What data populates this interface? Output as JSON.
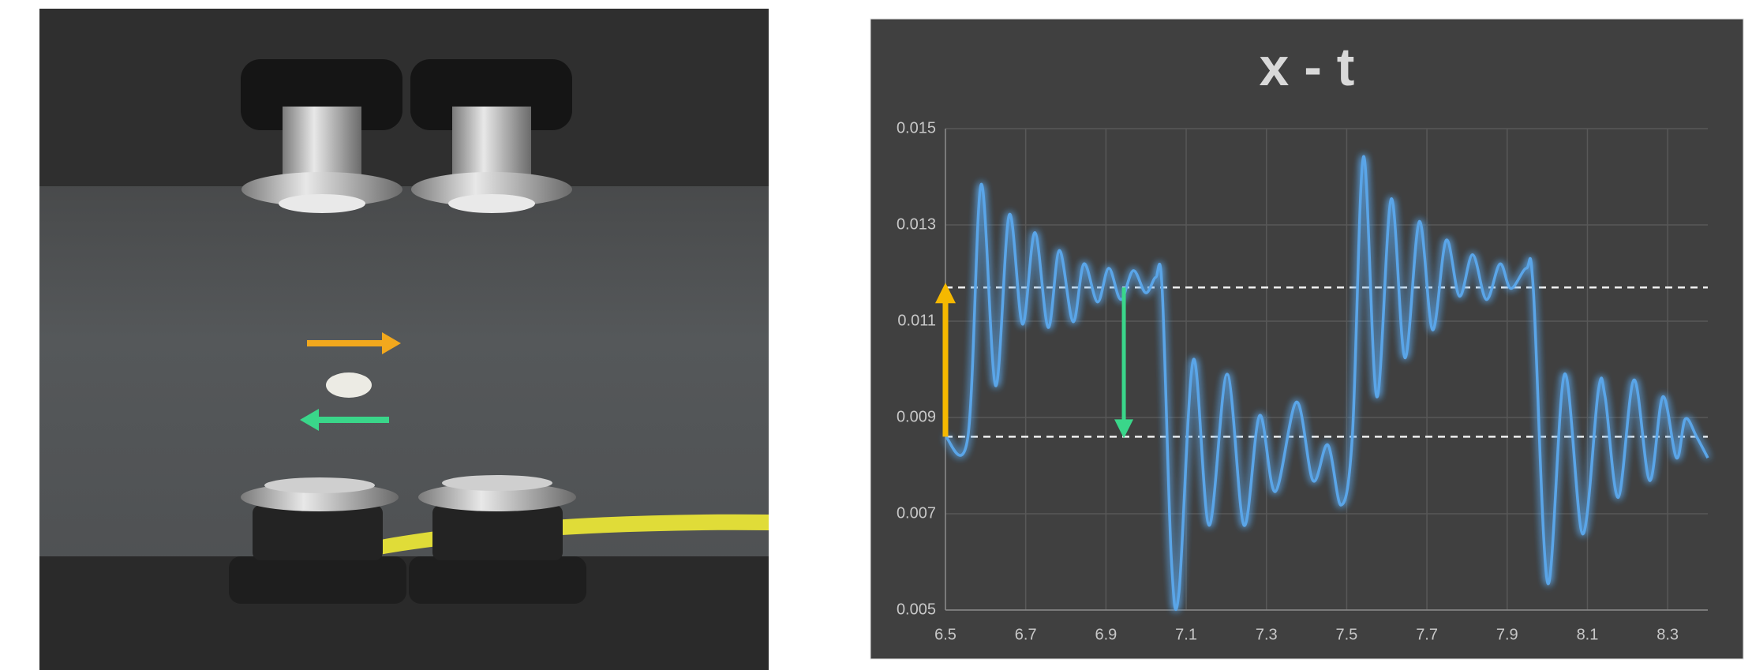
{
  "chart_data": {
    "type": "line",
    "title": "x - t",
    "xlim": [
      6.5,
      8.4
    ],
    "xticks": [
      6.5,
      6.7,
      6.9,
      7.1,
      7.3,
      7.5,
      7.7,
      7.9,
      8.1,
      8.3
    ],
    "ylim": [
      0.005,
      0.015
    ],
    "yticks": [
      0.005,
      0.007,
      0.009,
      0.011,
      0.013,
      0.015
    ],
    "grid": true,
    "reference_lines": [
      0.0117,
      0.0086
    ],
    "series": [
      {
        "color": "#5aa5e8",
        "x": [
          6.5,
          6.556,
          6.589,
          6.625,
          6.659,
          6.692,
          6.723,
          6.756,
          6.784,
          6.818,
          6.845,
          6.879,
          6.907,
          6.937,
          6.968,
          6.999,
          7.024,
          7.04,
          7.063,
          7.082,
          7.118,
          7.157,
          7.202,
          7.244,
          7.283,
          7.322,
          7.375,
          7.416,
          7.453,
          7.486,
          7.514,
          7.542,
          7.575,
          7.611,
          7.645,
          7.681,
          7.714,
          7.748,
          7.781,
          7.814,
          7.848,
          7.882,
          7.909,
          7.948,
          7.965,
          8.001,
          8.043,
          8.088,
          8.127,
          8.144,
          8.177,
          8.216,
          8.255,
          8.288,
          8.322,
          8.344,
          8.372,
          8.4
        ],
        "values": [
          0.0086,
          0.0086,
          0.01384,
          0.00966,
          0.01321,
          0.01094,
          0.01284,
          0.01087,
          0.01247,
          0.01099,
          0.01219,
          0.0114,
          0.0121,
          0.01145,
          0.01205,
          0.01159,
          0.01191,
          0.01168,
          0.00607,
          0.00537,
          0.0102,
          0.00676,
          0.0099,
          0.00676,
          0.00904,
          0.00746,
          0.00932,
          0.00769,
          0.00843,
          0.00718,
          0.0086,
          0.01442,
          0.00943,
          0.01354,
          0.01024,
          0.01307,
          0.01082,
          0.01268,
          0.01152,
          0.01238,
          0.01145,
          0.01219,
          0.01168,
          0.0121,
          0.01168,
          0.00556,
          0.0099,
          0.00658,
          0.00955,
          0.00943,
          0.00734,
          0.00978,
          0.00769,
          0.00943,
          0.00816,
          0.00897,
          0.0086,
          0.00816
        ]
      }
    ]
  }
}
